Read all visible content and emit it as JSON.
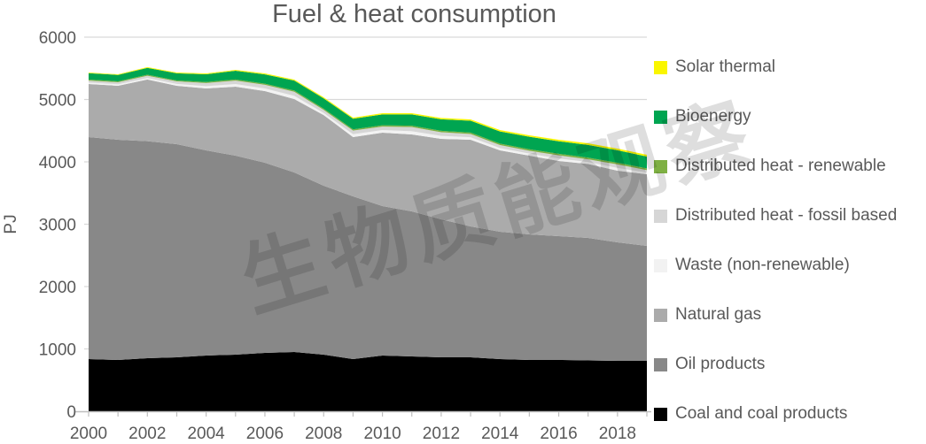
{
  "watermark": "生物质能观察",
  "colors": {
    "axis_text": "#595959",
    "grid": "#D9D9D9",
    "axis_line": "#BFBFBF",
    "watermark": "rgba(0,0,0,0.13)"
  },
  "chart_data": {
    "type": "area",
    "stacked": true,
    "title": "Fuel & heat consumption",
    "ylabel": "PJ",
    "ylim": [
      0,
      6000
    ],
    "ytick_step": 1000,
    "grid": true,
    "legend_position": "right",
    "legend_order": "top of stack listed first",
    "x": [
      2000,
      2001,
      2002,
      2003,
      2004,
      2005,
      2006,
      2007,
      2008,
      2009,
      2010,
      2011,
      2012,
      2013,
      2014,
      2015,
      2016,
      2017,
      2018,
      2019
    ],
    "xtick_years": [
      2000,
      2002,
      2004,
      2006,
      2008,
      2010,
      2012,
      2014,
      2016,
      2018
    ],
    "series": [
      {
        "name": "Coal and coal products",
        "color": "#000000",
        "values": [
          837,
          823,
          851,
          865,
          894,
          908,
          936,
          950,
          908,
          837,
          894,
          879,
          865,
          865,
          837,
          823,
          823,
          816,
          808,
          808
        ]
      },
      {
        "name": "Oil products",
        "color": "#888888",
        "values": [
          3560,
          3532,
          3480,
          3419,
          3290,
          3191,
          3050,
          2880,
          2709,
          2610,
          2397,
          2327,
          2213,
          2100,
          2042,
          2014,
          1986,
          1964,
          1901,
          1844
        ]
      },
      {
        "name": "Natural gas",
        "color": "#ABABAB",
        "values": [
          851,
          865,
          990,
          936,
          993,
          1107,
          1149,
          1177,
          1133,
          950,
          1177,
          1234,
          1291,
          1390,
          1305,
          1262,
          1205,
          1186,
          1149,
          1149
        ]
      },
      {
        "name": "Waste (non-renewable)",
        "color": "#F2F2F2",
        "values": [
          23,
          23,
          25,
          30,
          37,
          42,
          43,
          52,
          36,
          46,
          42,
          52,
          47,
          40,
          37,
          34,
          40,
          33,
          44,
          29
        ]
      },
      {
        "name": "Distributed heat - fossil based",
        "color": "#D6D6D6",
        "values": [
          33,
          33,
          36,
          40,
          50,
          56,
          57,
          65,
          47,
          58,
          55,
          66,
          60,
          51,
          48,
          44,
          51,
          42,
          57,
          37
        ]
      },
      {
        "name": "Distributed heat - renewable",
        "color": "#7EB043",
        "values": [
          15,
          15,
          15,
          15,
          16,
          17,
          18,
          19,
          20,
          20,
          21,
          22,
          22,
          23,
          24,
          25,
          25,
          26,
          27,
          28
        ]
      },
      {
        "name": "Bioenergy",
        "color": "#00A551",
        "values": [
          103,
          103,
          110,
          115,
          125,
          140,
          150,
          160,
          165,
          170,
          175,
          180,
          185,
          190,
          195,
          200,
          200,
          205,
          200,
          190
        ]
      },
      {
        "name": "Solar thermal",
        "color": "#FAF600",
        "values": [
          10,
          10,
          12,
          12,
          13,
          14,
          15,
          16,
          17,
          18,
          19,
          20,
          21,
          22,
          23,
          24,
          25,
          26,
          27,
          28
        ]
      }
    ]
  }
}
